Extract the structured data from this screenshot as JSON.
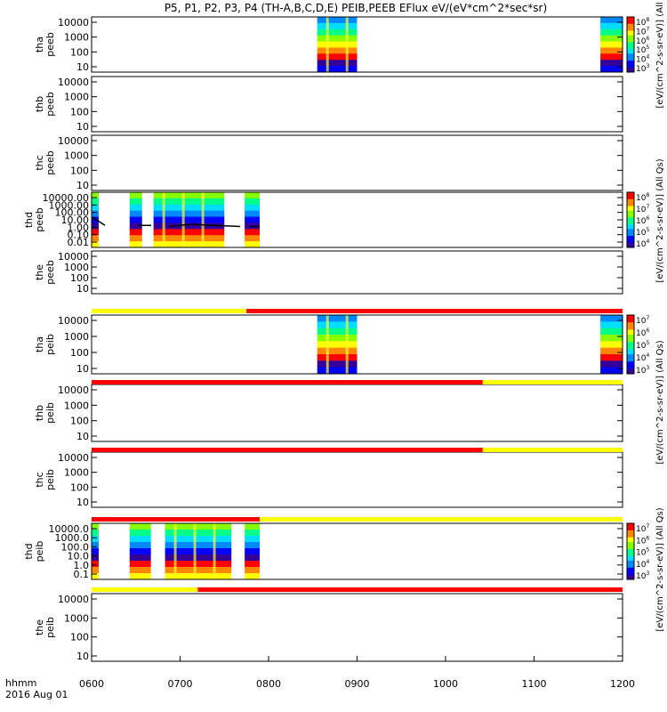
{
  "chart_data": {
    "type": "heatmap",
    "title": "P5, P1, P2, P3, P4 (TH-A,B,C,D,E) PEIB,PEEB EFlux eV/(eV*cm^2*sec*sr)",
    "xlabel": "hhmm",
    "date_label": "2016 Aug 01",
    "x_ticks": [
      "0600",
      "0700",
      "0800",
      "0900",
      "1000",
      "1100",
      "1200"
    ],
    "x_range_hours": [
      6,
      12
    ],
    "y_scale": "log",
    "colors": {
      "bar_yellow": "#ffff00",
      "bar_red": "#ff0000",
      "curve": "#000000"
    },
    "panels": [
      {
        "id": "tha_peeb",
        "label_line1": "tha",
        "label_line2": "peeb",
        "yticks": [
          "10000",
          "1000",
          "100",
          "10"
        ],
        "data_windows": [
          [
            8.55,
            9.0
          ],
          [
            11.75,
            12.0
          ]
        ],
        "colorbar": {
          "ticks": [
            "10^8",
            "10^7",
            "10^6",
            "10^5",
            "10^4",
            "10^3"
          ]
        }
      },
      {
        "id": "thb_peeb",
        "label_line1": "thb",
        "label_line2": "peeb",
        "yticks": [
          "10000",
          "1000",
          "100",
          "10"
        ],
        "data_windows": []
      },
      {
        "id": "thc_peeb",
        "label_line1": "thc",
        "label_line2": "peeb",
        "yticks": [
          "10000",
          "1000",
          "100",
          "10"
        ],
        "data_windows": []
      },
      {
        "id": "thd_peeb",
        "label_line1": "thd",
        "label_line2": "peeb",
        "yticks": [
          "10000.00",
          "1000.00",
          "100.00",
          "10.00",
          "1.00",
          "0.10",
          "0.01"
        ],
        "data_windows": [
          [
            6.0,
            6.08
          ],
          [
            6.43,
            6.57
          ],
          [
            6.7,
            7.5
          ],
          [
            7.73,
            7.9
          ]
        ],
        "colorbar": {
          "ticks": [
            "10^8",
            "10^7",
            "10^6",
            "10^5",
            "10^4"
          ]
        },
        "has_curve": true
      },
      {
        "id": "the_peeb",
        "label_line1": "the",
        "label_line2": "peeb",
        "yticks": [
          "10000",
          "1000",
          "100",
          "10"
        ],
        "data_windows": []
      },
      {
        "id": "tha_peib",
        "label_line1": "tha",
        "label_line2": "peib",
        "yticks": [
          "10000",
          "1000",
          "100",
          "10"
        ],
        "data_windows": [
          [
            8.55,
            9.0
          ],
          [
            11.75,
            12.0
          ]
        ],
        "colorbar": {
          "ticks": [
            "10^7",
            "10^6",
            "10^5",
            "10^4",
            "10^3"
          ]
        },
        "bar_above": {
          "yellow_until_hours": 7.75,
          "red_until_hours": 12.0
        }
      },
      {
        "id": "thb_peib",
        "label_line1": "thb",
        "label_line2": "peib",
        "yticks": [
          "10000",
          "1000",
          "100",
          "10"
        ],
        "data_windows": [],
        "bar_above": {
          "red_until_hours": 10.42,
          "yellow_until_hours": 12.0
        }
      },
      {
        "id": "thc_peib",
        "label_line1": "thc",
        "label_line2": "peib",
        "yticks": [
          "10000",
          "1000",
          "100",
          "10"
        ],
        "data_windows": [],
        "bar_above": {
          "red_until_hours": 10.42,
          "yellow_until_hours": 12.0
        }
      },
      {
        "id": "thd_peib",
        "label_line1": "thd",
        "label_line2": "peib",
        "yticks": [
          "10000.0",
          "1000.0",
          "100.0",
          "10.0",
          "1.0",
          "0.1"
        ],
        "data_windows": [
          [
            6.0,
            6.08
          ],
          [
            6.43,
            6.67
          ],
          [
            6.83,
            7.58
          ],
          [
            7.73,
            7.9
          ]
        ],
        "colorbar": {
          "ticks": [
            "10^7",
            "10^6",
            "10^5",
            "10^4",
            "10^3"
          ]
        },
        "bar_above": {
          "red_until_hours": 7.9,
          "yellow_until_hours": 12.0
        }
      },
      {
        "id": "the_peib",
        "label_line1": "the",
        "label_line2": "peib",
        "yticks": [
          "10000",
          "1000",
          "100",
          "10"
        ],
        "data_windows": [],
        "bar_above": {
          "yellow_until_hours": 7.2,
          "red_until_hours": 12.0
        }
      }
    ],
    "colorbar_labels": [
      "[eV/(cm^2-s-sr-eV)] (All Qs)",
      "[eV/(cm^2-s-sr-eV)] (All Qs)",
      "[eV/(cm^2-s-sr-eV)] (All Qs)",
      "[eV/(cm^2-s-sr-eV)] (All Qs)"
    ]
  }
}
